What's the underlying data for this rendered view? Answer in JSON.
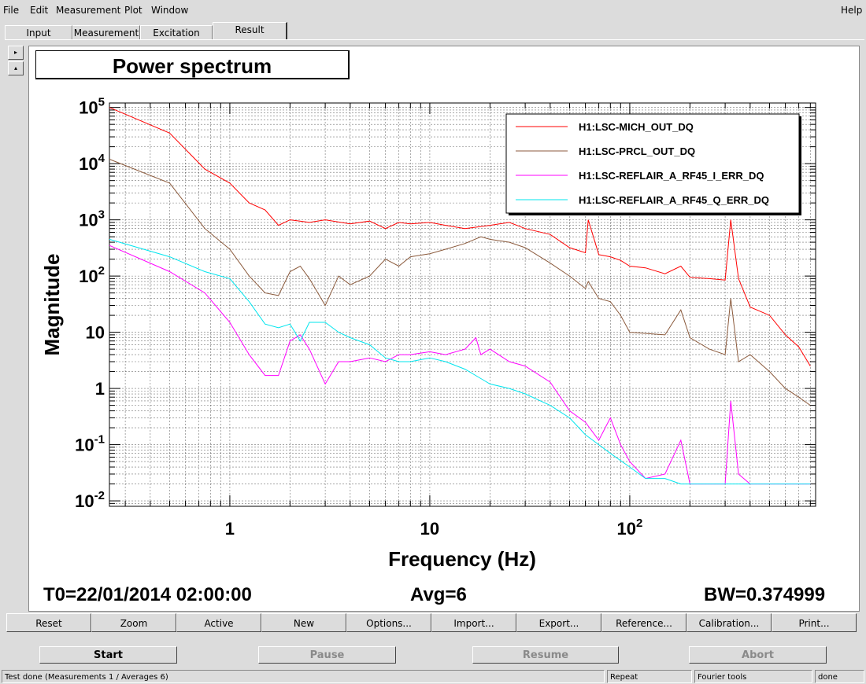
{
  "menu": {
    "file": "File",
    "edit": "Edit",
    "measurement": "Measurement",
    "plot": "Plot",
    "window": "Window",
    "help": "Help"
  },
  "tabs": [
    "Input",
    "Measurement",
    "Excitation",
    "Result"
  ],
  "side_buttons": {
    "right": "▸",
    "up": "▴"
  },
  "plot": {
    "title": "Power spectrum",
    "xlabel": "Frequency (Hz)",
    "ylabel": "Magnitude",
    "t0": "T0=22/01/2014 02:00:00",
    "avg": "Avg=6",
    "bw": "BW=0.374999"
  },
  "chart_data": {
    "type": "line",
    "title": "Power spectrum",
    "xlabel": "Frequency (Hz)",
    "ylabel": "Magnitude",
    "x_scale": "log",
    "y_scale": "log",
    "xlim": [
      0.25,
      850
    ],
    "ylim": [
      0.008,
      120000
    ],
    "grid": true,
    "legend_placement": "top-right",
    "x_ticks": [
      {
        "v": 1,
        "label": "1"
      },
      {
        "v": 10,
        "label": "10"
      },
      {
        "v": 100,
        "label": "10",
        "sup": "2"
      }
    ],
    "y_ticks": [
      {
        "v": 100000,
        "label": "10",
        "sup": "5"
      },
      {
        "v": 10000,
        "label": "10",
        "sup": "4"
      },
      {
        "v": 1000,
        "label": "10",
        "sup": "3"
      },
      {
        "v": 100,
        "label": "10",
        "sup": "2"
      },
      {
        "v": 10,
        "label": "10",
        "sup": ""
      },
      {
        "v": 1,
        "label": "1",
        "sup": ""
      },
      {
        "v": 0.1,
        "label": "10",
        "sup": "-1"
      },
      {
        "v": 0.01,
        "label": "10",
        "sup": "-2"
      }
    ],
    "series": [
      {
        "name": "H1:LSC-MICH_OUT_DQ",
        "color": "#ff0000",
        "x": [
          0.25,
          0.5,
          0.75,
          1,
          1.25,
          1.5,
          1.75,
          2,
          2.5,
          3,
          4,
          5,
          6,
          7,
          8,
          10,
          12,
          15,
          20,
          25,
          30,
          40,
          50,
          60,
          62,
          70,
          80,
          90,
          100,
          120,
          150,
          180,
          200,
          250,
          300,
          320,
          350,
          400,
          500,
          600,
          700,
          800
        ],
        "y": [
          100000,
          35000,
          8000,
          4500,
          2000,
          1500,
          800,
          1000,
          900,
          1000,
          850,
          950,
          700,
          900,
          850,
          900,
          800,
          700,
          800,
          900,
          700,
          550,
          320,
          260,
          1000,
          240,
          220,
          190,
          150,
          140,
          110,
          150,
          95,
          90,
          85,
          1000,
          90,
          28,
          20,
          9,
          5.5,
          2.5
        ]
      },
      {
        "name": "H1:LSC-PRCL_OUT_DQ",
        "color": "#8b5a3c",
        "x": [
          0.25,
          0.5,
          0.75,
          1,
          1.25,
          1.5,
          1.75,
          2,
          2.25,
          2.5,
          3,
          3.5,
          4,
          5,
          6,
          7,
          8,
          10,
          12,
          15,
          18,
          20,
          25,
          30,
          40,
          50,
          60,
          62,
          70,
          80,
          90,
          100,
          150,
          180,
          200,
          250,
          300,
          320,
          350,
          400,
          500,
          600,
          700,
          800
        ],
        "y": [
          12000,
          4500,
          700,
          300,
          100,
          50,
          45,
          120,
          150,
          90,
          30,
          100,
          70,
          100,
          200,
          150,
          220,
          250,
          300,
          380,
          500,
          450,
          400,
          320,
          170,
          100,
          60,
          80,
          40,
          35,
          20,
          10,
          9,
          25,
          8,
          5,
          4,
          40,
          3,
          4,
          2,
          1,
          0.7,
          0.5
        ]
      },
      {
        "name": "H1:LSC-REFLAIR_A_RF45_I_ERR_DQ",
        "color": "#ff00ff",
        "x": [
          0.25,
          0.5,
          0.75,
          1,
          1.25,
          1.5,
          1.75,
          2,
          2.25,
          2.5,
          3,
          3.5,
          4,
          5,
          6,
          7,
          8,
          10,
          12,
          15,
          17,
          18,
          20,
          25,
          30,
          40,
          50,
          60,
          70,
          80,
          90,
          100,
          120,
          150,
          180,
          200,
          250,
          300,
          320,
          350,
          400,
          500,
          600,
          700,
          800
        ],
        "y": [
          350,
          120,
          50,
          15,
          4,
          1.7,
          1.7,
          7,
          9,
          5,
          1.2,
          3,
          3,
          3.5,
          3,
          4,
          4,
          4.5,
          4,
          5,
          8,
          4,
          5,
          3,
          2.5,
          1.3,
          0.4,
          0.25,
          0.12,
          0.3,
          0.1,
          0.05,
          0.025,
          0.03,
          0.12,
          0.02,
          0.02,
          0.02,
          0.6,
          0.03,
          0.02,
          0.02,
          0.02,
          0.02,
          0.02
        ]
      },
      {
        "name": "H1:LSC-REFLAIR_A_RF45_Q_ERR_DQ",
        "color": "#00e5ee",
        "x": [
          0.25,
          0.5,
          0.75,
          1,
          1.25,
          1.5,
          1.75,
          2,
          2.25,
          2.5,
          3,
          3.5,
          4,
          5,
          6,
          7,
          8,
          10,
          12,
          15,
          18,
          20,
          25,
          30,
          40,
          50,
          60,
          70,
          80,
          100,
          120,
          150,
          180,
          200,
          300,
          400,
          500,
          600,
          700,
          800
        ],
        "y": [
          450,
          220,
          120,
          90,
          35,
          14,
          12,
          14,
          7,
          15,
          15,
          10,
          8,
          6,
          3.5,
          3,
          3,
          3.5,
          3,
          2.2,
          1.5,
          1.2,
          1,
          0.8,
          0.5,
          0.3,
          0.15,
          0.1,
          0.07,
          0.04,
          0.025,
          0.025,
          0.02,
          0.02,
          0.02,
          0.02,
          0.02,
          0.02,
          0.02,
          0.02
        ]
      }
    ]
  },
  "buttons": [
    "Reset",
    "Zoom",
    "Active",
    "New",
    "Options...",
    "Import...",
    "Export...",
    "Reference...",
    "Calibration...",
    "Print..."
  ],
  "controls": {
    "start": "Start",
    "pause": "Pause",
    "resume": "Resume",
    "abort": "Abort"
  },
  "status": {
    "message": "Test done (Measurements 1 / Averages 6)",
    "mode": "Repeat",
    "tools": "Fourier tools",
    "state": "done"
  }
}
